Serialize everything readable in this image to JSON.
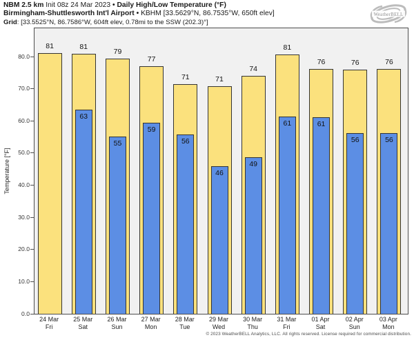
{
  "header": {
    "model": "NBM 2.5 km",
    "init": "Init 08z 24 Mar 2023",
    "sep": "•",
    "product": "Daily High/Low Temperature (°F)",
    "station": "Birmingham-Shuttlesworth Int'l Airport",
    "station_details": "KBHM [33.5629°N, 86.7535°W, 650ft elev]",
    "grid_label": "Grid",
    "grid_details": ": [33.5525°N, 86.7586°W, 604ft elev, 0.78mi to the SSW (202.3)°]"
  },
  "logo": {
    "icon": "weatherbell-swirl-icon",
    "text": "WeatherBELL",
    "subtext": "Analytics LLC"
  },
  "footer": {
    "copyright": "© 2023 WeatherBELL Analytics, LLC. All rights reserved. License required for commercial distribution."
  },
  "colors": {
    "high_bar": "#fbe17d",
    "low_bar": "#5c8ee4",
    "bar_border": "#333333",
    "plot_bg": "#f1f1f1",
    "frame": "#4c4c4c"
  },
  "chart_data": {
    "type": "bar",
    "title": "NBM 2.5 km Daily High/Low Temperature (°F) — Birmingham-Shuttlesworth Int'l Airport (KBHM)",
    "ylabel": "Temperature [°F]",
    "ylim": [
      0,
      88.8
    ],
    "grid": false,
    "legend": "none",
    "ytick_values": [
      0,
      10,
      20,
      30,
      40,
      50,
      60,
      70,
      80
    ],
    "ytick_labels": [
      "0.0",
      "10.0",
      "20.0",
      "30.0",
      "40.0",
      "50.0",
      "60.0",
      "70.0",
      "80.0"
    ],
    "categories": [
      {
        "date": "24 Mar",
        "day": "Fri"
      },
      {
        "date": "25 Mar",
        "day": "Sat"
      },
      {
        "date": "26 Mar",
        "day": "Sun"
      },
      {
        "date": "27 Mar",
        "day": "Mon"
      },
      {
        "date": "28 Mar",
        "day": "Tue"
      },
      {
        "date": "29 Mar",
        "day": "Wed"
      },
      {
        "date": "30 Mar",
        "day": "Thu"
      },
      {
        "date": "31 Mar",
        "day": "Fri"
      },
      {
        "date": "01 Apr",
        "day": "Sat"
      },
      {
        "date": "02 Apr",
        "day": "Sun"
      },
      {
        "date": "03 Apr",
        "day": "Mon"
      }
    ],
    "series": [
      {
        "name": "Daily High",
        "color": "#fbe17d",
        "values": [
          81.0,
          80.9,
          79.4,
          76.9,
          71.4,
          70.8,
          74.0,
          80.7,
          76.2,
          76.0,
          76.2
        ],
        "labels": [
          "81",
          "81",
          "79",
          "77",
          "71",
          "71",
          "74",
          "81",
          "76",
          "76",
          "76"
        ]
      },
      {
        "name": "Daily Low",
        "color": "#5c8ee4",
        "values": [
          null,
          63.4,
          55.2,
          59.4,
          55.7,
          46.0,
          48.6,
          61.4,
          61.1,
          56.3,
          56.2
        ],
        "labels": [
          null,
          "63",
          "55",
          "59",
          "56",
          "46",
          "49",
          "61",
          "61",
          "56",
          "56"
        ]
      }
    ]
  }
}
